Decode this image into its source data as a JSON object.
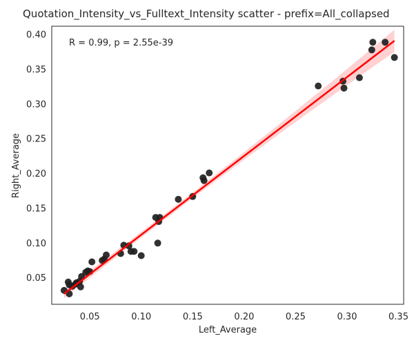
{
  "chart_data": {
    "type": "scatter",
    "title": "Quotation_Intensity_vs_Fulltext_Intensity scatter - prefix=All_collapsed",
    "xlabel": "Left_Average",
    "ylabel": "Right_Average",
    "annotation": "R = 0.99, p = 2.55e-39",
    "xlim": [
      0.013,
      0.355
    ],
    "ylim": [
      0.012,
      0.412
    ],
    "xticks": [
      0.05,
      0.1,
      0.15,
      0.2,
      0.25,
      0.3,
      0.35
    ],
    "xtick_labels": [
      "0.05",
      "0.10",
      "0.15",
      "0.20",
      "0.25",
      "0.30",
      "0.35"
    ],
    "yticks": [
      0.05,
      0.1,
      0.15,
      0.2,
      0.25,
      0.3,
      0.35,
      0.4
    ],
    "ytick_labels": [
      "0.05",
      "0.10",
      "0.15",
      "0.20",
      "0.25",
      "0.30",
      "0.35",
      "0.40"
    ],
    "grid": false,
    "legend": "none",
    "points": {
      "x": [
        0.025,
        0.029,
        0.03,
        0.03,
        0.033,
        0.036,
        0.037,
        0.04,
        0.041,
        0.042,
        0.046,
        0.048,
        0.05,
        0.052,
        0.062,
        0.064,
        0.066,
        0.08,
        0.083,
        0.088,
        0.09,
        0.093,
        0.1,
        0.114,
        0.116,
        0.117,
        0.118,
        0.136,
        0.15,
        0.16,
        0.161,
        0.166,
        0.272,
        0.296,
        0.297,
        0.312,
        0.324,
        0.325,
        0.337,
        0.346
      ],
      "y": [
        0.032,
        0.044,
        0.027,
        0.04,
        0.038,
        0.041,
        0.043,
        0.045,
        0.037,
        0.052,
        0.058,
        0.06,
        0.059,
        0.073,
        0.075,
        0.077,
        0.083,
        0.085,
        0.097,
        0.096,
        0.088,
        0.088,
        0.082,
        0.137,
        0.1,
        0.131,
        0.137,
        0.163,
        0.167,
        0.194,
        0.19,
        0.201,
        0.326,
        0.333,
        0.323,
        0.338,
        0.378,
        0.389,
        0.389,
        0.367
      ]
    },
    "fit_line": {
      "x": [
        0.025,
        0.346
      ],
      "y": [
        0.027,
        0.391
      ]
    },
    "colors": {
      "points": "#1f1f1f",
      "fit_line": "#ff0000",
      "confidence_band": "#ff9a9a"
    }
  }
}
